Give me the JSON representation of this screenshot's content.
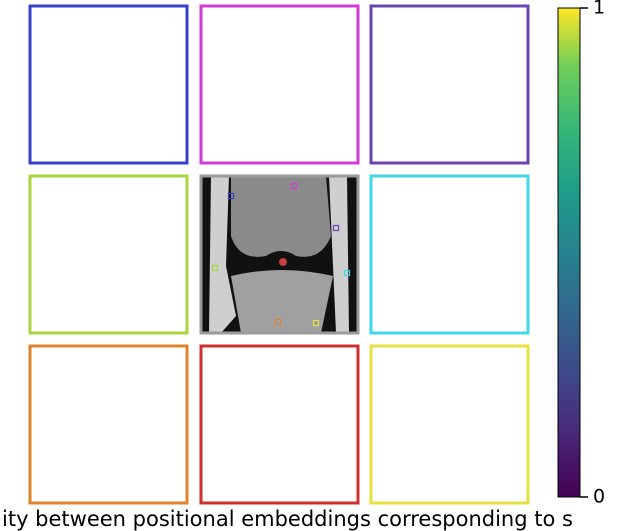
{
  "figure": {
    "panels": [
      {
        "border_color": "#3640c8"
      },
      {
        "border_color": "#d23ad6"
      },
      {
        "border_color": "#6b44b0"
      },
      {
        "border_color": "#a9d640"
      },
      {
        "border_color": "#9a9a9a"
      },
      {
        "border_color": "#40d8e8"
      },
      {
        "border_color": "#e0822e"
      },
      {
        "border_color": "#d0302c"
      },
      {
        "border_color": "#e8e040"
      }
    ],
    "colorbar": {
      "ylim": [
        0,
        1
      ],
      "yticks": [
        0,
        1
      ]
    },
    "caption": "ity between positional embeddings corresponding to s"
  }
}
